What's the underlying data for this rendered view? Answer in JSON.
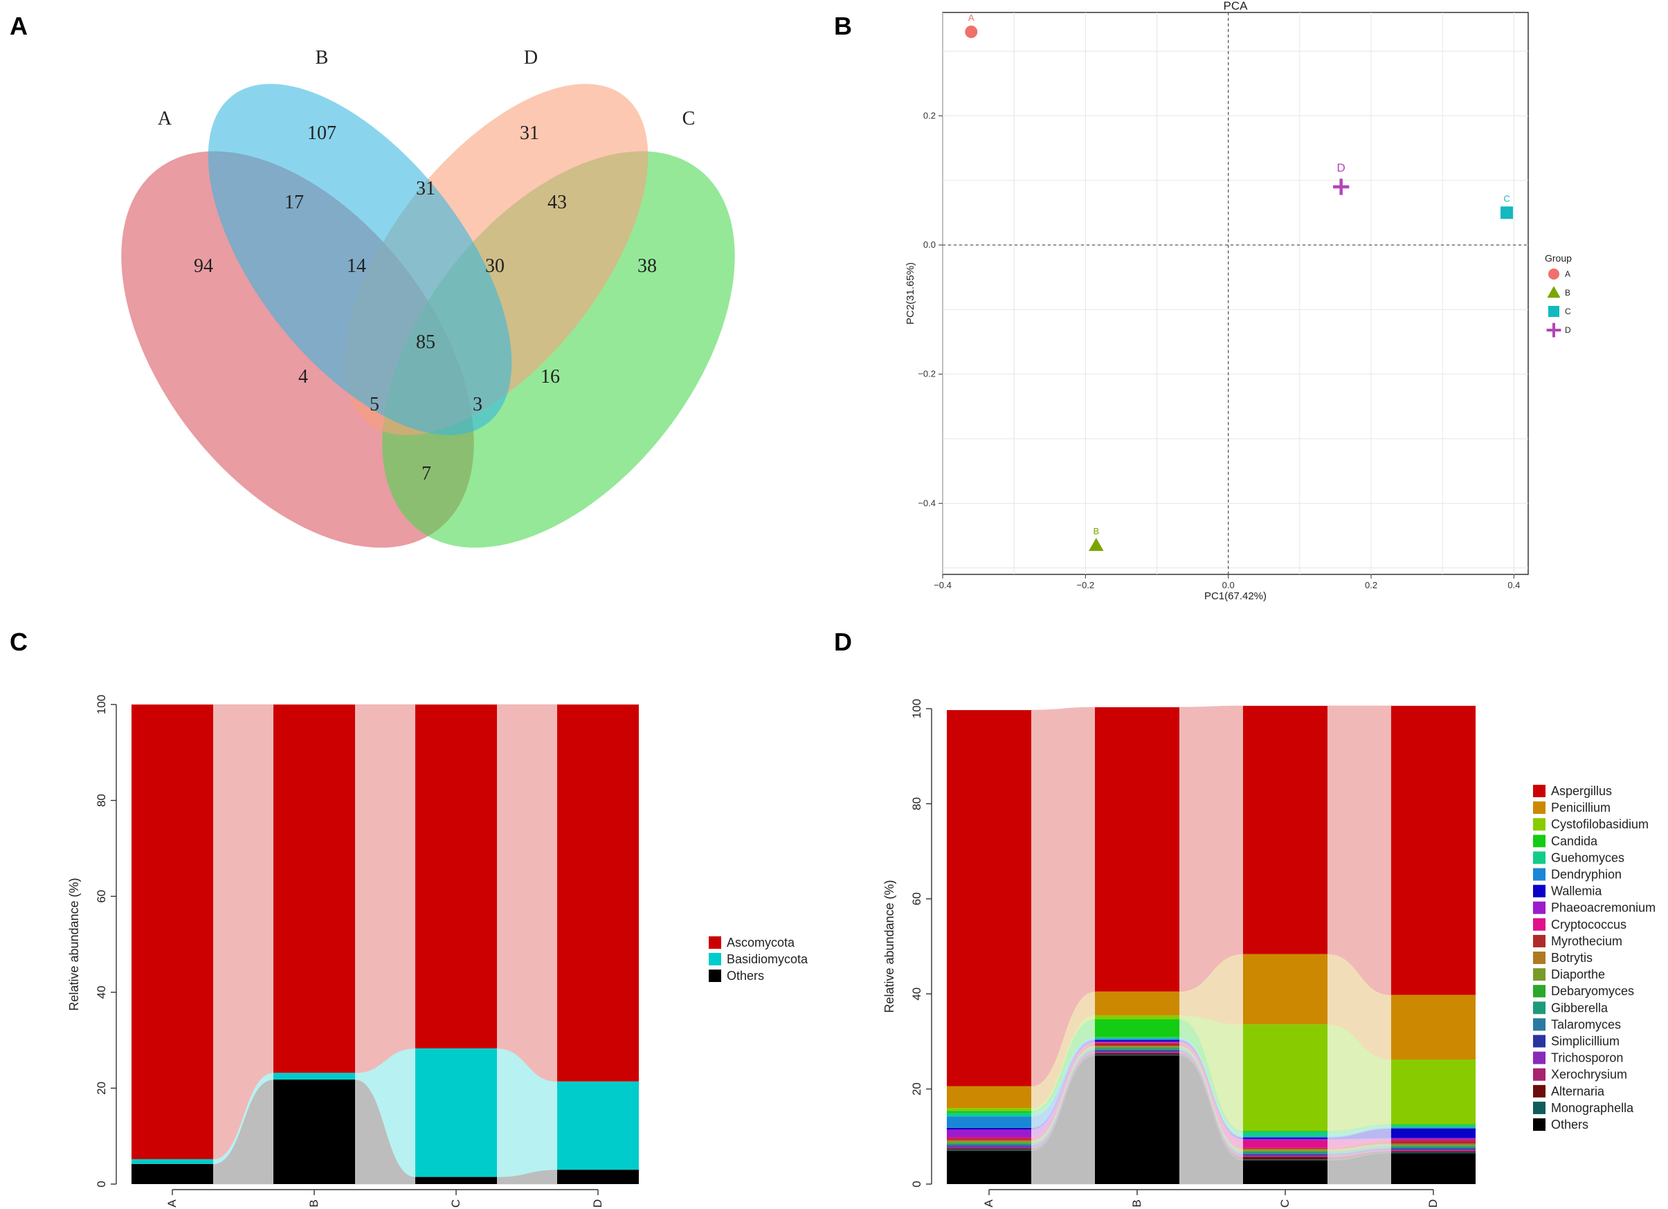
{
  "panels": {
    "a": "A",
    "b": "B",
    "c": "C",
    "d": "D"
  },
  "chart_data": [
    {
      "panel": "A",
      "type": "venn",
      "sets": [
        "A",
        "B",
        "D",
        "C"
      ],
      "set_colors": {
        "A": "#d9545e",
        "B": "#35b6e0",
        "D": "#f9a07a",
        "C": "#49d84d"
      },
      "regions": [
        {
          "sets": "A",
          "value": 94
        },
        {
          "sets": "B",
          "value": 107
        },
        {
          "sets": "D",
          "value": 31
        },
        {
          "sets": "C",
          "value": 38
        },
        {
          "sets": "A,B",
          "value": 17
        },
        {
          "sets": "B,D",
          "value": 31
        },
        {
          "sets": "D,C",
          "value": 43
        },
        {
          "sets": "A,B,D",
          "value": 14
        },
        {
          "sets": "B,D,C",
          "value": 30
        },
        {
          "sets": "A,B,D,C",
          "value": 85
        },
        {
          "sets": "A,D",
          "value": 4
        },
        {
          "sets": "B,C",
          "value": 16
        },
        {
          "sets": "A,D,C",
          "value": 5
        },
        {
          "sets": "A,B,C",
          "value": 3
        },
        {
          "sets": "A,C",
          "value": 7
        }
      ]
    },
    {
      "panel": "B",
      "type": "scatter",
      "title": "PCA",
      "xlabel": "PC1(67.42%)",
      "ylabel": "PC2(31.65%)",
      "xlim": [
        -0.4,
        0.42
      ],
      "ylim": [
        -0.51,
        0.36
      ],
      "xticks": [
        -0.4,
        -0.2,
        0.0,
        0.2,
        0.4
      ],
      "xtick_labels": [
        "−0.4",
        "−0.2",
        "0.0",
        "0.2",
        "0.4"
      ],
      "yticks": [
        -0.4,
        -0.2,
        0.0,
        0.2
      ],
      "ytick_labels": [
        "−0.4",
        "−0.2",
        "0.0",
        "0.2"
      ],
      "legend_title": "Group",
      "points": [
        {
          "label": "A",
          "x": -0.36,
          "y": 0.33,
          "shape": "circle",
          "color": "#f0706a"
        },
        {
          "label": "B",
          "x": -0.185,
          "y": -0.465,
          "shape": "triangle",
          "color": "#7ca400"
        },
        {
          "label": "C",
          "x": 0.39,
          "y": 0.05,
          "shape": "square",
          "color": "#13b8c0"
        },
        {
          "label": "D",
          "x": 0.158,
          "y": 0.09,
          "shape": "cross",
          "color": "#b345b7"
        }
      ]
    },
    {
      "panel": "C",
      "type": "bar",
      "stacked": true,
      "categories": [
        "A",
        "B",
        "C",
        "D"
      ],
      "ylabel": "Relative abundance (%)",
      "ylim": [
        0,
        100
      ],
      "yticks": [
        0,
        20,
        40,
        60,
        80,
        100
      ],
      "series": [
        {
          "name": "Others",
          "color": "#000000",
          "values": [
            4.2,
            21.8,
            1.5,
            3.0
          ]
        },
        {
          "name": "Basidiomycota",
          "color": "#00cccc",
          "values": [
            1.0,
            1.4,
            26.8,
            18.4
          ]
        },
        {
          "name": "Ascomycota",
          "color": "#cc0000",
          "values": [
            94.8,
            76.8,
            71.7,
            78.6
          ]
        }
      ],
      "legend_order": [
        "Ascomycota",
        "Basidiomycota",
        "Others"
      ]
    },
    {
      "panel": "D",
      "type": "bar",
      "stacked": true,
      "categories": [
        "A",
        "B",
        "C",
        "D"
      ],
      "ylabel": "Relative abundance (%)",
      "ylim": [
        0,
        100
      ],
      "yticks": [
        0,
        20,
        40,
        60,
        80,
        100
      ],
      "series": [
        {
          "name": "Others",
          "color": "#000000",
          "values": [
            7.0,
            27.0,
            5.0,
            6.5
          ]
        },
        {
          "name": "Monographella",
          "color": "#0f5c5c",
          "values": [
            0.3,
            0.2,
            0.2,
            0.2
          ]
        },
        {
          "name": "Alternaria",
          "color": "#6b0c0c",
          "values": [
            0.2,
            0.3,
            0.5,
            0.2
          ]
        },
        {
          "name": "Xerochrysium",
          "color": "#a8226e",
          "values": [
            0.2,
            0.2,
            0.2,
            0.2
          ]
        },
        {
          "name": "Trichosporon",
          "color": "#8a2ab8",
          "values": [
            0.2,
            0.2,
            0.2,
            0.2
          ]
        },
        {
          "name": "Simplicillium",
          "color": "#2a34a0",
          "values": [
            0.2,
            0.2,
            0.2,
            0.2
          ]
        },
        {
          "name": "Talaromyces",
          "color": "#2a7aa0",
          "values": [
            0.2,
            0.2,
            0.2,
            0.2
          ]
        },
        {
          "name": "Gibberella",
          "color": "#1c9a7a",
          "values": [
            0.2,
            0.2,
            0.2,
            0.2
          ]
        },
        {
          "name": "Debaryomyces",
          "color": "#2aa82a",
          "values": [
            0.2,
            0.2,
            0.2,
            0.2
          ]
        },
        {
          "name": "Diaporthe",
          "color": "#7a9a2a",
          "values": [
            0.2,
            0.2,
            0.2,
            0.2
          ]
        },
        {
          "name": "Botrytis",
          "color": "#b07a22",
          "values": [
            0.3,
            0.2,
            0.3,
            0.2
          ]
        },
        {
          "name": "Myrothecium",
          "color": "#b02a2a",
          "values": [
            0.4,
            0.5,
            0.2,
            0.6
          ]
        },
        {
          "name": "Cryptococcus",
          "color": "#e0108a",
          "values": [
            0.3,
            0.2,
            1.6,
            0.3
          ]
        },
        {
          "name": "Phaeoacremonium",
          "color": "#9b1ccc",
          "values": [
            1.6,
            0.2,
            0.3,
            0.3
          ]
        },
        {
          "name": "Wallemia",
          "color": "#0a00c8",
          "values": [
            0.3,
            0.3,
            0.3,
            2.0
          ]
        },
        {
          "name": "Dendryphion",
          "color": "#1a86d6",
          "values": [
            2.4,
            0.3,
            0.2,
            0.2
          ]
        },
        {
          "name": "Guehomyces",
          "color": "#12cc8a",
          "values": [
            0.8,
            0.3,
            1.0,
            0.5
          ]
        },
        {
          "name": "Candida",
          "color": "#13cc13",
          "values": [
            0.4,
            3.8,
            0.2,
            0.2
          ]
        },
        {
          "name": "Cystofilobasidium",
          "color": "#88cc00",
          "values": [
            0.6,
            0.8,
            22.4,
            13.6
          ]
        },
        {
          "name": "Penicillium",
          "color": "#cc8800",
          "values": [
            4.6,
            5.0,
            14.8,
            13.6
          ]
        },
        {
          "name": "Aspergillus",
          "color": "#cc0000",
          "values": [
            79.1,
            59.8,
            52.2,
            60.8
          ]
        }
      ],
      "legend_order": [
        "Aspergillus",
        "Penicillium",
        "Cystofilobasidium",
        "Candida",
        "Guehomyces",
        "Dendryphion",
        "Wallemia",
        "Phaeoacremonium",
        "Cryptococcus",
        "Myrothecium",
        "Botrytis",
        "Diaporthe",
        "Debaryomyces",
        "Gibberella",
        "Talaromyces",
        "Simplicillium",
        "Trichosporon",
        "Xerochrysium",
        "Alternaria",
        "Monographella",
        "Others"
      ]
    }
  ]
}
